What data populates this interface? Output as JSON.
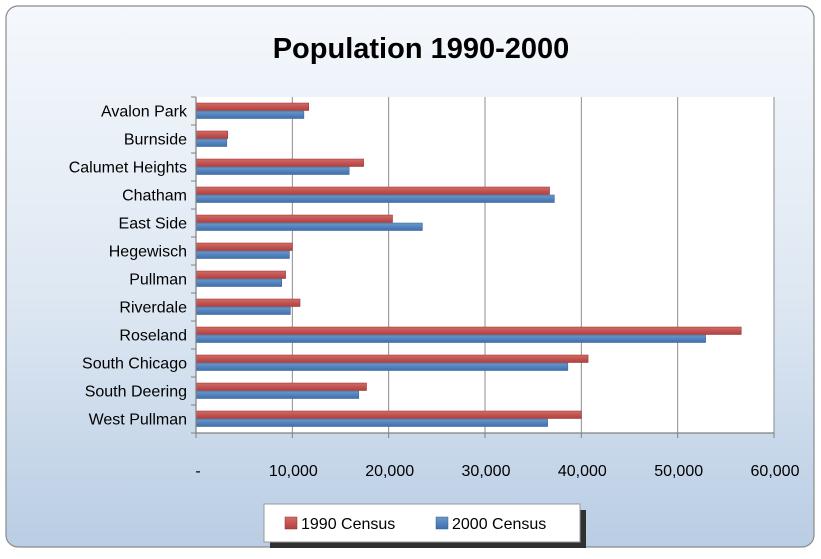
{
  "chart_data": {
    "type": "bar",
    "orientation": "horizontal",
    "title": "Population 1990-2000",
    "xlabel": "",
    "ylabel": "",
    "categories": [
      "Avalon Park",
      "Burnside",
      "Calumet Heights",
      "Chatham",
      "East Side",
      "Hegewisch",
      "Pullman",
      "Riverdale",
      "Roseland",
      "South Chicago",
      "South Deering",
      "West Pullman"
    ],
    "series": [
      {
        "name": "1990 Census",
        "color": "#C0504D",
        "values": [
          11700,
          3300,
          17400,
          36700,
          20400,
          10000,
          9300,
          10800,
          56600,
          40700,
          17700,
          40000
        ]
      },
      {
        "name": "2000 Census",
        "color": "#4F81BD",
        "values": [
          11200,
          3200,
          15900,
          37200,
          23500,
          9700,
          8900,
          9800,
          52900,
          38600,
          16900,
          36500
        ]
      }
    ],
    "xlim": [
      0,
      60000
    ],
    "x_ticks": [
      0,
      10000,
      20000,
      30000,
      40000,
      50000,
      60000
    ],
    "x_tick_labels": [
      "-",
      "10,000",
      "20,000",
      "30,000",
      "40,000",
      "50,000",
      "60,000"
    ],
    "grid": true,
    "legend_position": "bottom"
  }
}
